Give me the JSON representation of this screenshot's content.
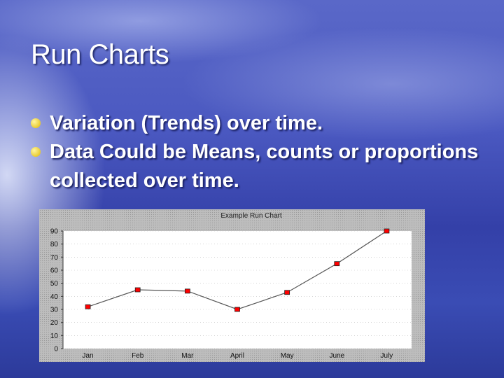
{
  "slide": {
    "title": "Run Charts",
    "bullets": [
      "Variation  (Trends) over time.",
      "Data Could be Means, counts or proportions collected over time."
    ]
  },
  "colors": {
    "bullet": "#f0c800",
    "marker": "#ff0000",
    "line": "#555555"
  },
  "chart_data": {
    "type": "line",
    "title": "Example Run Chart",
    "categories": [
      "Jan",
      "Feb",
      "Mar",
      "April",
      "May",
      "June",
      "July"
    ],
    "values": [
      32,
      45,
      44,
      30,
      43,
      65,
      90
    ],
    "ylim": [
      0,
      90
    ],
    "yticks": [
      0,
      10,
      20,
      30,
      40,
      50,
      60,
      70,
      80,
      90
    ],
    "grid": true,
    "xlabel": "",
    "ylabel": ""
  }
}
